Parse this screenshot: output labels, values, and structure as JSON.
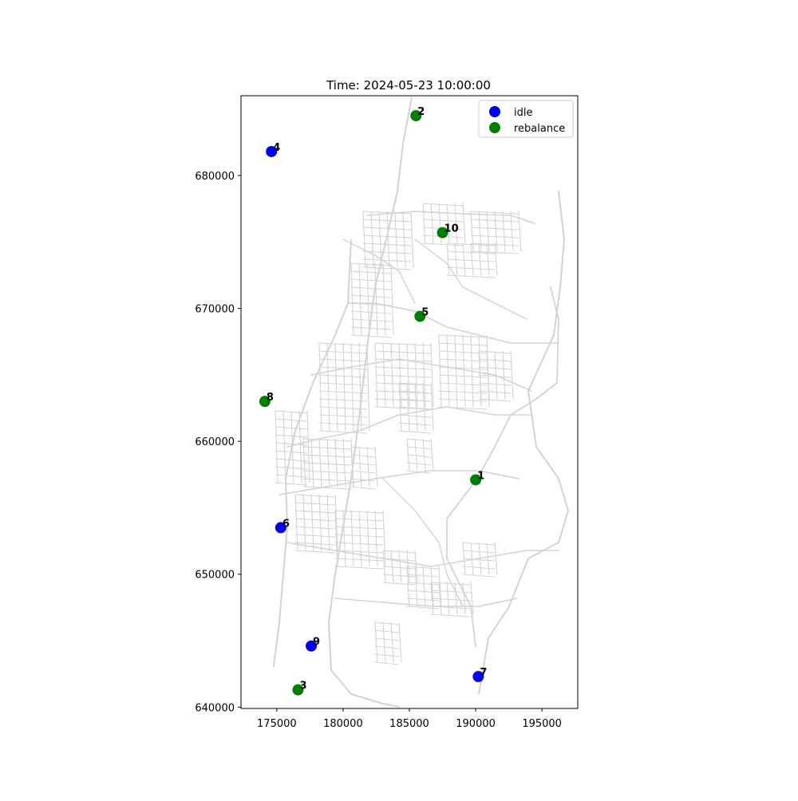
{
  "chart_data": {
    "type": "scatter",
    "title": "Time: 2024-05-23 10:00:00",
    "xlabel": "",
    "ylabel": "",
    "xlim": [
      172300,
      197700
    ],
    "ylim": [
      639900,
      686000
    ],
    "xticks": [
      175000,
      180000,
      185000,
      190000,
      195000
    ],
    "yticks": [
      640000,
      650000,
      660000,
      670000,
      680000
    ],
    "grid": false,
    "legend_position": "top-right",
    "background_map": "road network (light gray)",
    "series": [
      {
        "name": "idle",
        "color": "#0000ff",
        "points": [
          {
            "id": "4",
            "x": 174600,
            "y": 681800
          },
          {
            "id": "6",
            "x": 175300,
            "y": 653500
          },
          {
            "id": "9",
            "x": 177600,
            "y": 644600
          },
          {
            "id": "7",
            "x": 190200,
            "y": 642300
          }
        ]
      },
      {
        "name": "rebalance",
        "color": "#008000",
        "points": [
          {
            "id": "2",
            "x": 185500,
            "y": 684500
          },
          {
            "id": "10",
            "x": 187500,
            "y": 675700
          },
          {
            "id": "5",
            "x": 185800,
            "y": 669400
          },
          {
            "id": "8",
            "x": 174100,
            "y": 663000
          },
          {
            "id": "1",
            "x": 190000,
            "y": 657100
          },
          {
            "id": "3",
            "x": 176600,
            "y": 641300
          }
        ]
      }
    ]
  }
}
